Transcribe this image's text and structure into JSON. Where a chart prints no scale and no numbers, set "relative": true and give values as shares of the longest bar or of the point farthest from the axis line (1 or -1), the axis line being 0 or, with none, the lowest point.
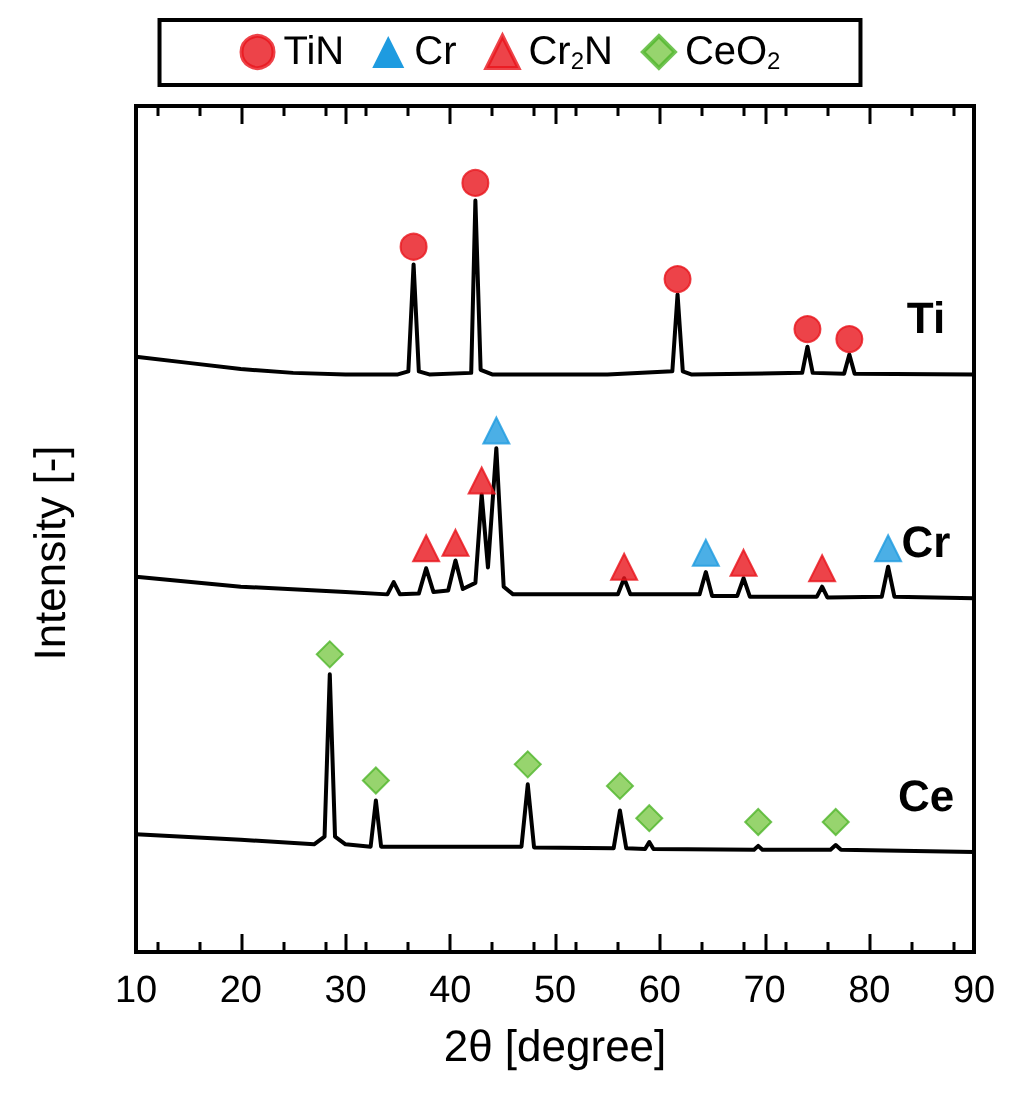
{
  "chart_data": {
    "type": "line",
    "relative": true,
    "xlabel": "2θ [degree]",
    "ylabel": "Intensity [-]",
    "xlim": [
      10,
      90
    ],
    "xticks": [
      10,
      20,
      30,
      40,
      50,
      60,
      70,
      80,
      90
    ],
    "legend": "top",
    "grid": false,
    "series": [
      {
        "name": "Ti",
        "color": "#000000",
        "marker": "none",
        "x": [
          10,
          15,
          20,
          25,
          30,
          35,
          36,
          36.5,
          37,
          38,
          42,
          42.4,
          42.9,
          44,
          55,
          61.2,
          61.7,
          62.2,
          63,
          73.6,
          74.1,
          74.6,
          77.6,
          78.1,
          78.6,
          90
        ],
        "values": [
          0.774,
          0.766,
          0.758,
          0.753,
          0.751,
          0.751,
          0.755,
          0.894,
          0.755,
          0.751,
          0.753,
          0.977,
          0.757,
          0.751,
          0.751,
          0.755,
          0.855,
          0.755,
          0.751,
          0.753,
          0.787,
          0.753,
          0.752,
          0.777,
          0.752,
          0.751
        ]
      },
      {
        "name": "Cr",
        "color": "#000000",
        "marker": "none",
        "x": [
          10,
          20,
          30,
          34,
          34.6,
          35.2,
          37,
          37.7,
          38.4,
          39.8,
          40.5,
          41.2,
          42.4,
          43.0,
          43.6,
          44.4,
          45.1,
          46,
          56,
          56.6,
          57.2,
          63.8,
          64.4,
          65,
          67.4,
          68.0,
          68.6,
          75,
          75.5,
          76,
          81.2,
          81.8,
          82.4,
          90
        ],
        "values": [
          0.488,
          0.475,
          0.468,
          0.465,
          0.481,
          0.465,
          0.466,
          0.499,
          0.468,
          0.47,
          0.509,
          0.472,
          0.48,
          0.595,
          0.5,
          0.655,
          0.475,
          0.465,
          0.465,
          0.486,
          0.465,
          0.465,
          0.494,
          0.463,
          0.463,
          0.486,
          0.462,
          0.462,
          0.475,
          0.461,
          0.462,
          0.501,
          0.462,
          0.46
        ]
      },
      {
        "name": "Ce",
        "color": "#000000",
        "marker": "none",
        "x": [
          10,
          20,
          27,
          28,
          28.5,
          29,
          30,
          32.4,
          32.9,
          33.4,
          46.8,
          47.4,
          48,
          55.6,
          56.2,
          56.8,
          58.6,
          59.0,
          59.4,
          69,
          69.4,
          69.8,
          76.3,
          76.8,
          77.3,
          90
        ],
        "values": [
          0.153,
          0.146,
          0.14,
          0.15,
          0.361,
          0.15,
          0.14,
          0.137,
          0.197,
          0.137,
          0.137,
          0.218,
          0.136,
          0.135,
          0.184,
          0.135,
          0.134,
          0.143,
          0.134,
          0.133,
          0.138,
          0.133,
          0.133,
          0.139,
          0.133,
          0.13
        ]
      },
      {
        "name": "TiN",
        "type": "scatter",
        "color": "#e8141b",
        "marker": "circle",
        "x": [
          36.5,
          42.4,
          61.7,
          74.1,
          78.1
        ],
        "values": [
          0.917,
          1.0,
          0.875,
          0.81,
          0.797
        ]
      },
      {
        "name": "Cr",
        "type": "scatter",
        "color": "#1e9be0",
        "marker": "triangle",
        "x": [
          44.4,
          64.4,
          81.8
        ],
        "values": [
          0.678,
          0.519,
          0.525
        ]
      },
      {
        "name": "Cr$_{2}$N",
        "type": "scatter",
        "color": "#e8141b",
        "marker": "triangle",
        "x": [
          37.7,
          40.5,
          43.0,
          56.6,
          68.0,
          75.5
        ],
        "values": [
          0.525,
          0.532,
          0.613,
          0.501,
          0.506,
          0.499
        ]
      },
      {
        "name": "CeO$_{2}$",
        "type": "scatter",
        "color": "#7dc94a",
        "marker": "diamond",
        "x": [
          28.5,
          32.9,
          47.4,
          56.2,
          59.0,
          69.4,
          76.8
        ],
        "values": [
          0.387,
          0.223,
          0.244,
          0.216,
          0.174,
          0.169,
          0.169
        ]
      }
    ]
  }
}
